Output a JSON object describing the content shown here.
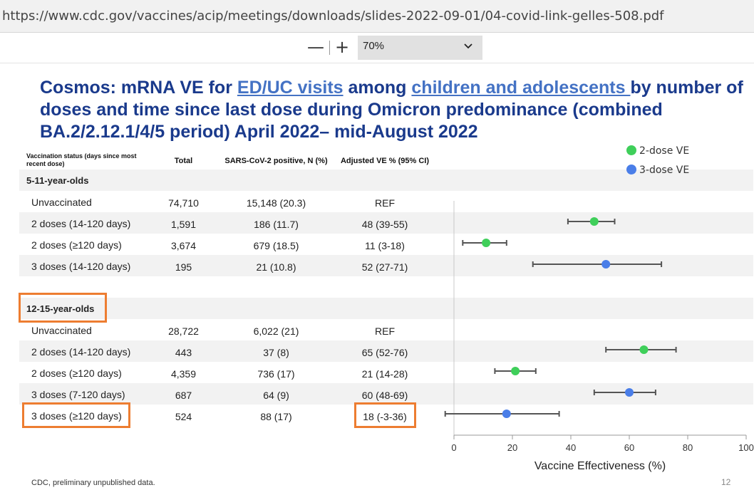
{
  "browser": {
    "url": "https://www.cdc.gov/vaccines/acip/meetings/downloads/slides-2022-09-01/04-covid-link-gelles-508.pdf",
    "zoom_out_label": "—",
    "zoom_in_label": "+",
    "zoom_value": "70%"
  },
  "slide": {
    "title_pre": "Cosmos: mRNA VE for ",
    "title_link1": "ED/UC visits",
    "title_mid": " among ",
    "title_link2": "children and adolescents ",
    "title_post": "by number of doses and time since last dose during Omicron predominance (combined BA.2/2.12.1/4/5 period) April 2022– mid-August 2022",
    "table_headers": {
      "status": "Vaccination status (days since most recent dose)",
      "total": "Total",
      "positive": "SARS-CoV-2 positive, N (%)",
      "ve": "Adjusted VE % (95% CI)"
    },
    "groups": [
      {
        "label": "5-11-year-olds",
        "rows": [
          {
            "label": "Unvaccinated",
            "total": "74,710",
            "positive": "15,148 (20.3)",
            "ve": "REF"
          },
          {
            "label": "2 doses (14-120 days)",
            "total": "1,591",
            "positive": "186 (11.7)",
            "ve": "48 (39-55)"
          },
          {
            "label": "2 doses (≥120 days)",
            "total": "3,674",
            "positive": "679 (18.5)",
            "ve": "11 (3-18)"
          },
          {
            "label": "3 doses (14-120 days)",
            "total": "195",
            "positive": "21 (10.8)",
            "ve": "52 (27-71)"
          }
        ]
      },
      {
        "label": "12-15-year-olds",
        "rows": [
          {
            "label": "Unvaccinated",
            "total": "28,722",
            "positive": "6,022 (21)",
            "ve": "REF"
          },
          {
            "label": "2 doses (14-120 days)",
            "total": "443",
            "positive": "37 (8)",
            "ve": "65 (52-76)"
          },
          {
            "label": "2 doses (≥120 days)",
            "total": "4,359",
            "positive": "736 (17)",
            "ve": "21 (14-28)"
          },
          {
            "label": "3 doses (7-120 days)",
            "total": "687",
            "positive": "64 (9)",
            "ve": "60 (48-69)"
          },
          {
            "label": "3 doses (≥120 days)",
            "total": "524",
            "positive": "88 (17)",
            "ve": "18 (-3-36)"
          }
        ]
      }
    ],
    "footer": "CDC, preliminary unpublished data.",
    "page_number": "12"
  },
  "chart_data": {
    "type": "scatter",
    "xlabel": "Vaccine Effectiveness (%)",
    "xlim": [
      0,
      100
    ],
    "xticks": [
      "0",
      "20",
      "40",
      "60",
      "80",
      "100"
    ],
    "legend_position": "top-right",
    "series": [
      {
        "name": "2-dose VE",
        "color": "#3fcf5a"
      },
      {
        "name": "3-dose VE",
        "color": "#4a7ee8"
      }
    ],
    "points": [
      {
        "row": "5-11 2 doses (14-120 days)",
        "series": "2-dose VE",
        "ve": 48,
        "lo": 39,
        "hi": 55
      },
      {
        "row": "5-11 2 doses (≥120 days)",
        "series": "2-dose VE",
        "ve": 11,
        "lo": 3,
        "hi": 18
      },
      {
        "row": "5-11 3 doses (14-120 days)",
        "series": "3-dose VE",
        "ve": 52,
        "lo": 27,
        "hi": 71
      },
      {
        "row": "12-15 2 doses (14-120 days)",
        "series": "2-dose VE",
        "ve": 65,
        "lo": 52,
        "hi": 76
      },
      {
        "row": "12-15 2 doses (≥120 days)",
        "series": "2-dose VE",
        "ve": 21,
        "lo": 14,
        "hi": 28
      },
      {
        "row": "12-15 3 doses (7-120 days)",
        "series": "3-dose VE",
        "ve": 60,
        "lo": 48,
        "hi": 69
      },
      {
        "row": "12-15 3 doses (≥120 days)",
        "series": "3-dose VE",
        "ve": 18,
        "lo": -3,
        "hi": 36
      }
    ]
  },
  "highlight_color": "#ed7d31"
}
